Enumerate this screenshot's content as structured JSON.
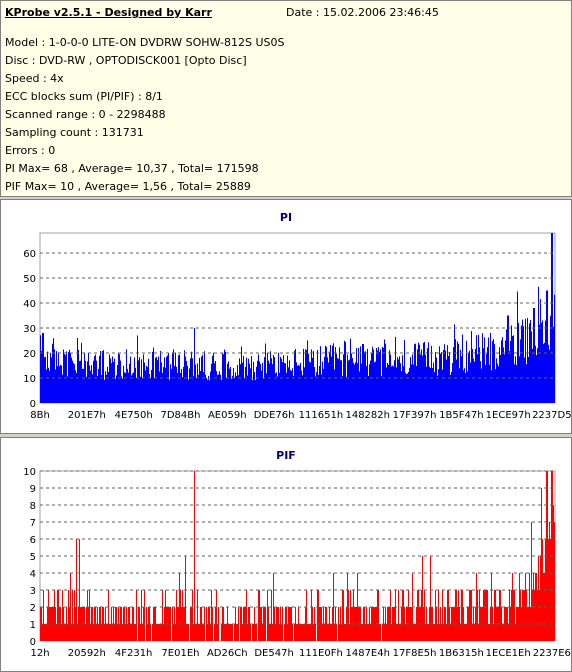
{
  "info": {
    "title": "KProbe v2.5.1 - Designed by Karr",
    "date": "Date : 15.02.2006 23:46:45",
    "lines": [
      "Model : 1-0-0-0 LITE-ON DVDRW SOHW-812S  US0S",
      "Disc : DVD-RW , OPTODISCK001 [Opto Disc]",
      "Speed : 4x",
      "ECC blocks sum (PI/PIF) : 8/1",
      "Scanned range : 0 - 2298488",
      "Sampling count : 131731",
      "Errors : 0",
      "PI Max= 68 , Average= 10,37 , Total= 171598",
      "PIF Max= 10 , Average= 1,56 , Total= 25889"
    ]
  },
  "chart_data": [
    {
      "type": "bar",
      "title": "PI",
      "color": "#0000ff",
      "ylim": [
        0,
        68
      ],
      "yticks": [
        0,
        10,
        20,
        30,
        40,
        50,
        60
      ],
      "grid": true,
      "xticklabels": [
        "8Bh",
        "201E7h",
        "4E750h",
        "7D84Bh",
        "AE059h",
        "DDE76h",
        "111651h",
        "148282h",
        "17F397h",
        "1B5F47h",
        "1ECE97h",
        "2237D5h"
      ],
      "profile": [
        [
          0,
          20
        ],
        [
          0.02,
          18
        ],
        [
          0.05,
          16
        ],
        [
          0.1,
          15
        ],
        [
          0.15,
          15
        ],
        [
          0.2,
          16
        ],
        [
          0.3,
          15
        ],
        [
          0.4,
          15
        ],
        [
          0.5,
          16
        ],
        [
          0.6,
          17
        ],
        [
          0.7,
          17
        ],
        [
          0.8,
          18
        ],
        [
          0.85,
          20
        ],
        [
          0.9,
          22
        ],
        [
          0.95,
          25
        ],
        [
          0.98,
          29
        ],
        [
          1.0,
          33
        ]
      ],
      "spikes": [
        [
          0.005,
          28
        ],
        [
          0.3,
          30
        ],
        [
          0.91,
          35
        ],
        [
          0.96,
          38
        ],
        [
          0.985,
          45
        ],
        [
          0.995,
          68
        ]
      ]
    },
    {
      "type": "bar",
      "title": "PIF",
      "color": "#ff0000",
      "ylim": [
        0,
        10
      ],
      "yticks": [
        0,
        1,
        2,
        3,
        4,
        5,
        6,
        7,
        8,
        9,
        10
      ],
      "grid": true,
      "xticklabels": [
        "12h",
        "20592h",
        "4F231h",
        "7E01Eh",
        "AD26Ch",
        "DE547h",
        "111E0Fh",
        "1487E4h",
        "17F8E5h",
        "1B6315h",
        "1ECE1Eh",
        "2237E6h"
      ],
      "profile": [
        [
          0,
          2.2
        ],
        [
          0.05,
          1.8
        ],
        [
          0.2,
          1.6
        ],
        [
          0.4,
          1.5
        ],
        [
          0.6,
          1.6
        ],
        [
          0.8,
          1.8
        ],
        [
          0.9,
          2.2
        ],
        [
          0.95,
          3.0
        ],
        [
          0.98,
          5.0
        ],
        [
          1.0,
          7.0
        ]
      ],
      "spikes": [
        [
          0.07,
          6
        ],
        [
          0.3,
          10
        ],
        [
          0.955,
          7
        ],
        [
          0.975,
          9
        ],
        [
          0.985,
          10
        ],
        [
          0.995,
          10
        ]
      ]
    }
  ]
}
